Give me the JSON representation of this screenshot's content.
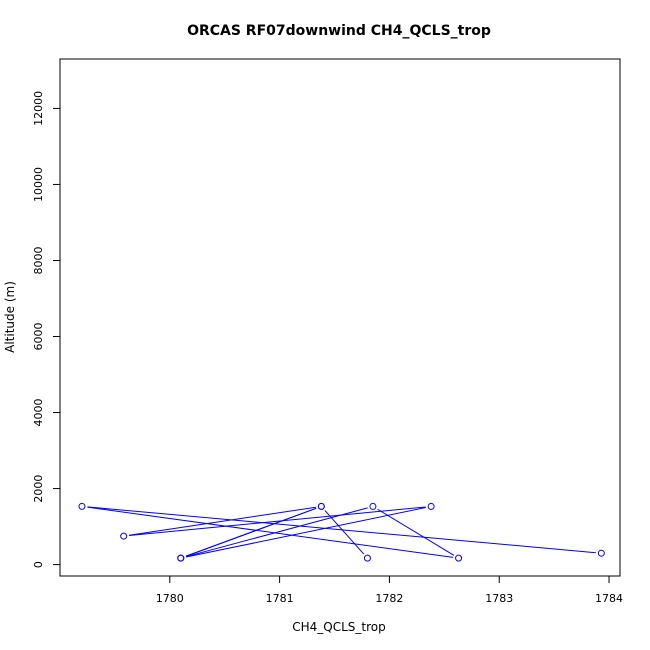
{
  "chart_data": {
    "type": "scatter",
    "title": "ORCAS RF07downwind CH4_QCLS_trop",
    "xlabel": "CH4_QCLS_trop",
    "ylabel": "Altitude (m)",
    "xlim": [
      1779.0,
      1784.1
    ],
    "ylim": [
      -300,
      13300
    ],
    "xticks": [
      1780,
      1781,
      1782,
      1783,
      1784
    ],
    "xtick_labels": [
      "1780",
      "1781",
      "1782",
      "1783",
      "1784"
    ],
    "yticks": [
      0,
      2000,
      4000,
      6000,
      8000,
      10000,
      12000
    ],
    "ytick_labels": [
      "0",
      "2000",
      "4000",
      "6000",
      "8000",
      "10000",
      "12000"
    ],
    "grid": false,
    "connected": true,
    "series_color": "#0000ff",
    "points": [
      {
        "x": 1783.93,
        "y": 300
      },
      {
        "x": 1779.2,
        "y": 1530
      },
      {
        "x": 1782.63,
        "y": 170
      },
      {
        "x": 1781.85,
        "y": 1530
      },
      {
        "x": 1780.1,
        "y": 170
      },
      {
        "x": 1782.38,
        "y": 1530
      },
      {
        "x": 1779.58,
        "y": 750
      },
      {
        "x": 1781.38,
        "y": 1530
      },
      {
        "x": 1780.1,
        "y": 170
      },
      {
        "x": 1781.38,
        "y": 1530
      },
      {
        "x": 1781.8,
        "y": 170
      }
    ]
  }
}
